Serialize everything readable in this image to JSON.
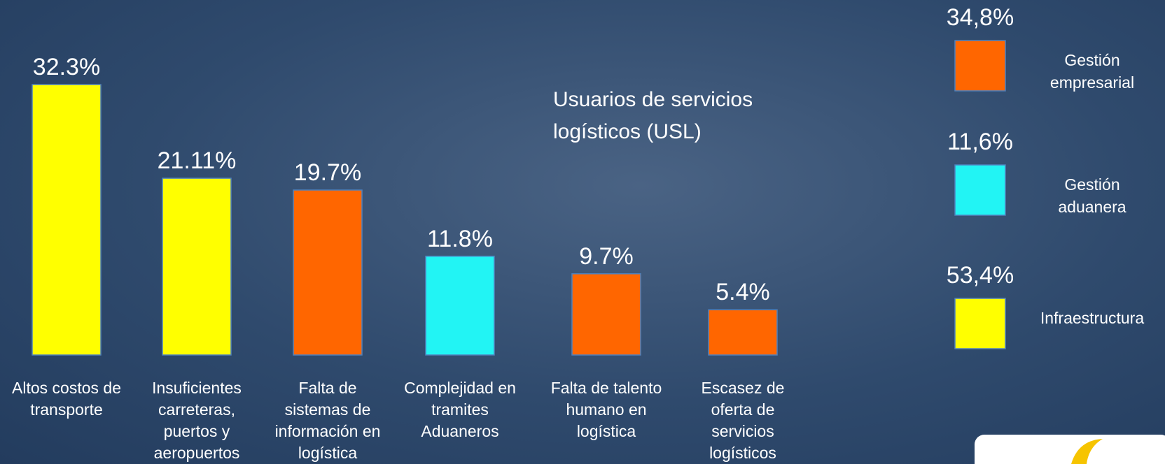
{
  "chart_data": [
    {
      "type": "bar",
      "categories": [
        "Altos costos de transporte",
        "Insuficientes carreteras, puertos y aeropuertos",
        "Falta de sistemas de información en logística",
        "Complejidad en tramites Aduaneros",
        "Falta de talento humano en logística",
        "Escasez de oferta de servicios logísticos"
      ],
      "values": [
        32.3,
        21.11,
        19.7,
        11.8,
        9.7,
        5.4
      ],
      "value_labels": [
        "32.3%",
        "21.11%",
        "19.7%",
        "11.8%",
        "9.7%",
        "5.4%"
      ],
      "colors": [
        "#ffff00",
        "#ffff00",
        "#ff6600",
        "#22f4f4",
        "#ff6600",
        "#ff6600"
      ]
    },
    {
      "type": "category-boxes",
      "title": "Usuarios de servicios logísticos (USL)",
      "categories": [
        "Gestión empresarial",
        "Gestión aduanera",
        "Infraestructura"
      ],
      "values": [
        34.8,
        11.6,
        53.4
      ],
      "value_labels": [
        "34,8%",
        "11,6%",
        "53,4%"
      ],
      "colors": [
        "#ff6600",
        "#22f4f4",
        "#ffff00"
      ]
    }
  ]
}
